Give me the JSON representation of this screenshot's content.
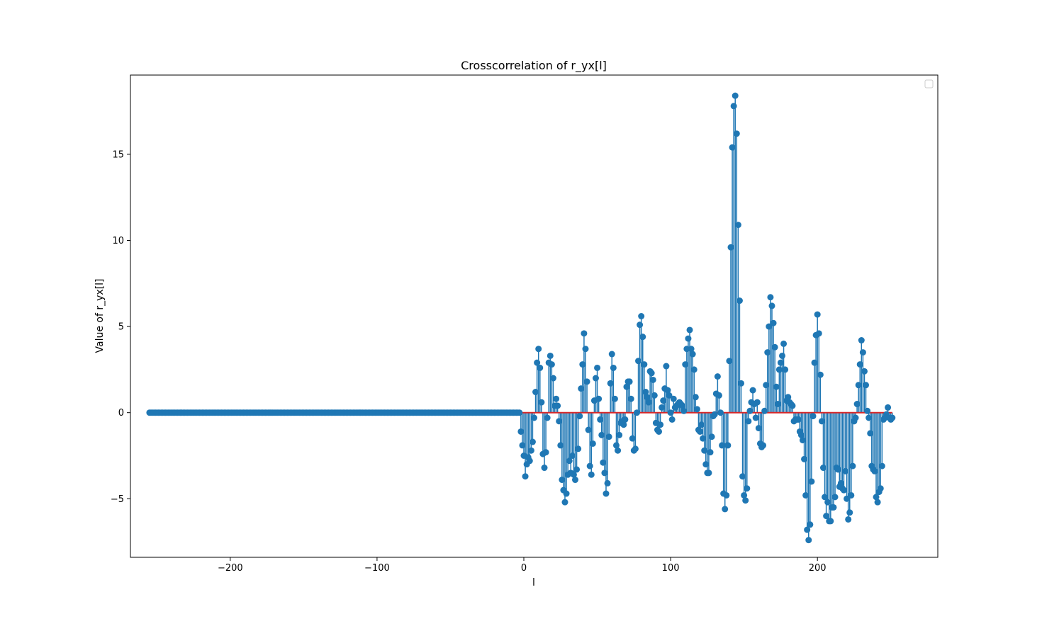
{
  "chart_data": {
    "type": "stem",
    "title": "Crosscorrelation of r_yx[l]",
    "xlabel": "l",
    "ylabel": "Value of r_yx[l]",
    "xlim": [
      -268,
      282
    ],
    "ylim": [
      -8.4,
      19.6
    ],
    "xticks": [
      -200,
      -100,
      0,
      100,
      200
    ],
    "xtick_labels": [
      "−200",
      "−100",
      "0",
      "100",
      "200"
    ],
    "yticks": [
      -5,
      0,
      5,
      10,
      15
    ],
    "ytick_labels": [
      "−5",
      "0",
      "5",
      "10",
      "15"
    ],
    "legend": "top-right (empty)",
    "grid": false,
    "colors": {
      "stem": "#1f77b4",
      "baseline": "#d62728"
    },
    "x_start": -255,
    "values": [
      0,
      0,
      0,
      0,
      0,
      0,
      0,
      0,
      0,
      0,
      0,
      0,
      0,
      0,
      0,
      0,
      0,
      0,
      0,
      0,
      0,
      0,
      0,
      0,
      0,
      0,
      0,
      0,
      0,
      0,
      0,
      0,
      0,
      0,
      0,
      0,
      0,
      0,
      0,
      0,
      0,
      0,
      0,
      0,
      0,
      0,
      0,
      0,
      0,
      0,
      0,
      0,
      0,
      0,
      0,
      0,
      0,
      0,
      0,
      0,
      0,
      0,
      0,
      0,
      0,
      0,
      0,
      0,
      0,
      0,
      0,
      0,
      0,
      0,
      0,
      0,
      0,
      0,
      0,
      0,
      0,
      0,
      0,
      0,
      0,
      0,
      0,
      0,
      0,
      0,
      0,
      0,
      0,
      0,
      0,
      0,
      0,
      0,
      0,
      0,
      0,
      0,
      0,
      0,
      0,
      0,
      0,
      0,
      0,
      0,
      0,
      0,
      0,
      0,
      0,
      0,
      0,
      0,
      0,
      0,
      0,
      0,
      0,
      0,
      0,
      0,
      0,
      0,
      0,
      0,
      0,
      0,
      0,
      0,
      0,
      0,
      0,
      0,
      0,
      0,
      0,
      0,
      0,
      0,
      0,
      0,
      0,
      0,
      0,
      0,
      0,
      0,
      0,
      0,
      0,
      0,
      0,
      0,
      0,
      0,
      0,
      0,
      0,
      0,
      0,
      0,
      0,
      0,
      0,
      0,
      0,
      0,
      0,
      0,
      0,
      0,
      0,
      0,
      0,
      0,
      0,
      0,
      0,
      0,
      0,
      0,
      0,
      0,
      0,
      0,
      0,
      0,
      0,
      0,
      0,
      0,
      0,
      0,
      0,
      0,
      0,
      0,
      0,
      0,
      0,
      0,
      0,
      0,
      0,
      0,
      0,
      0,
      0,
      0,
      0,
      0,
      0,
      0,
      0,
      0,
      0,
      0,
      0,
      0,
      0,
      0,
      0,
      0,
      0,
      0,
      0,
      0,
      0,
      0,
      0,
      0,
      0,
      0,
      0,
      0,
      0,
      0,
      0,
      0,
      0,
      0,
      0,
      0,
      0,
      0,
      0,
      0,
      0,
      -1.1,
      -1.9,
      -2.5,
      -3.7,
      -3.0,
      -2.6,
      -2.8,
      -2.2,
      -1.7,
      -0.3,
      1.2,
      2.9,
      3.7,
      2.6,
      0.6,
      -2.4,
      -3.2,
      -2.3,
      -0.3,
      2.9,
      3.3,
      2.8,
      2.0,
      0.4,
      0.8,
      0.4,
      -0.5,
      -1.9,
      -3.9,
      -4.5,
      -5.2,
      -4.7,
      -3.6,
      -2.8,
      -3.5,
      -2.5,
      -3.6,
      -3.9,
      -3.3,
      -2.1,
      -0.2,
      1.4,
      2.8,
      4.6,
      3.7,
      1.8,
      -1.0,
      -3.1,
      -3.6,
      -1.8,
      0.7,
      2.0,
      2.6,
      0.8,
      -0.4,
      -1.3,
      -2.9,
      -3.5,
      -4.7,
      -4.1,
      -1.4,
      1.7,
      3.4,
      2.6,
      0.8,
      -1.9,
      -2.2,
      -1.3,
      -0.6,
      -0.5,
      -0.7,
      -0.4,
      1.5,
      1.8,
      1.8,
      0.8,
      -1.5,
      -2.2,
      -2.1,
      0.0,
      3.0,
      5.1,
      5.6,
      4.4,
      2.8,
      1.2,
      0.9,
      0.6,
      2.4,
      2.3,
      1.9,
      1.0,
      -0.6,
      -1.0,
      -1.1,
      -0.7,
      0.3,
      0.7,
      1.4,
      2.7,
      1.3,
      1.0,
      0.0,
      -0.4,
      0.8,
      0.3,
      0.4,
      0.5,
      0.6,
      0.5,
      0.4,
      0.1,
      2.8,
      3.7,
      4.3,
      4.8,
      3.7,
      3.4,
      2.5,
      0.9,
      0.2,
      -1.0,
      -1.1,
      -0.7,
      -1.5,
      -2.2,
      -3.0,
      -3.5,
      -3.5,
      -2.3,
      -1.4,
      -0.2,
      -0.1,
      1.1,
      2.1,
      1.0,
      0.0,
      -1.9,
      -4.7,
      -5.6,
      -4.8,
      -1.9,
      3.0,
      9.6,
      15.4,
      17.8,
      18.4,
      16.2,
      10.9,
      6.5,
      1.7,
      -3.7,
      -4.8,
      -5.1,
      -4.4,
      -0.5,
      0.1,
      0.6,
      1.3,
      0.5,
      -0.3,
      0.6,
      -0.9,
      -1.8,
      -2.0,
      -1.9,
      0.1,
      1.6,
      3.5,
      5.0,
      6.7,
      6.2,
      5.2,
      3.8,
      1.5,
      0.5,
      2.5,
      2.9,
      3.3,
      4.0,
      2.5,
      0.7,
      0.9,
      0.6,
      0.5,
      0.4,
      -0.5,
      -0.4,
      -0.4,
      -0.4,
      -1.1,
      -1.3,
      -1.6,
      -2.7,
      -4.8,
      -6.8,
      -7.4,
      -6.5,
      -4.0,
      -0.2,
      2.9,
      4.5,
      5.7,
      4.6,
      2.2,
      -0.5,
      -3.2,
      -4.9,
      -6.0,
      -5.2,
      -6.3,
      -6.3,
      -5.5,
      -5.5,
      -4.9,
      -3.2,
      -3.3,
      -4.3,
      -4.1,
      -4.4,
      -4.5,
      -3.4,
      -5.0,
      -6.2,
      -5.8,
      -4.8,
      -3.1,
      -0.5,
      -0.3,
      0.5,
      1.6,
      2.8,
      4.2,
      3.5,
      2.4,
      1.6,
      0.1,
      -0.3,
      -1.2,
      -3.1,
      -3.3,
      -3.4,
      -4.9,
      -5.2,
      -4.6,
      -4.4,
      -3.1,
      -0.4,
      -0.3,
      -0.1,
      0.3,
      -0.3,
      -0.4,
      -0.3
    ]
  }
}
